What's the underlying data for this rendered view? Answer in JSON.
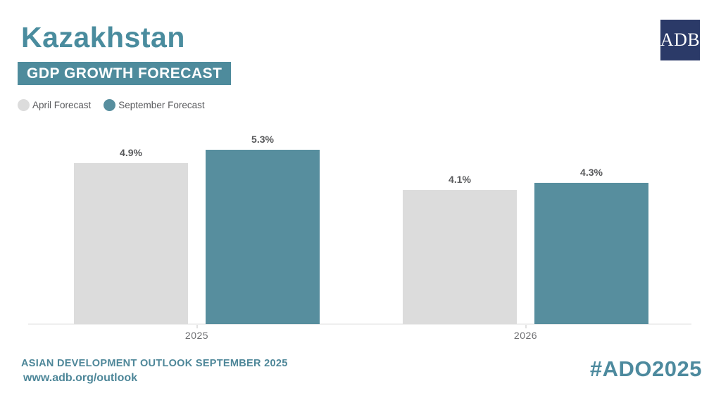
{
  "header": {
    "title": "Kazakhstan",
    "subtitle_banner": "GDP GROWTH FORECAST",
    "logo_text": "ADB"
  },
  "legend": {
    "items": [
      {
        "label": "April Forecast",
        "color": "#dcdcdc"
      },
      {
        "label": "September Forecast",
        "color": "#578e9e"
      }
    ]
  },
  "chart_data": {
    "type": "bar",
    "categories": [
      "2025",
      "2026"
    ],
    "series": [
      {
        "name": "April Forecast",
        "color": "#dcdcdc",
        "values": [
          4.9,
          4.1
        ]
      },
      {
        "name": "September Forecast",
        "color": "#578e9e",
        "values": [
          5.3,
          4.3
        ]
      }
    ],
    "value_labels": [
      [
        "4.9%",
        "5.3%"
      ],
      [
        "4.1%",
        "4.3%"
      ]
    ],
    "title": "Kazakhstan GDP Growth Forecast",
    "xlabel": "",
    "ylabel": "",
    "ylim": [
      0,
      6.2
    ],
    "grid": false,
    "axis_labels_shown": false,
    "legend_position": "top-left"
  },
  "footer": {
    "line1": "ASIAN DEVELOPMENT OUTLOOK SEPTEMBER 2025",
    "line2": "www.adb.org/outlook",
    "hashtag": "#ADO2025"
  },
  "colors": {
    "teal_title": "#4a8c9e",
    "teal_banner": "#4e8b9c",
    "teal_bar": "#578e9e",
    "gray_bar": "#dcdcdc",
    "navy_logo": "#2b3a68",
    "value_label_gray": "#58595b",
    "axis_label_gray": "#6d6e71"
  }
}
